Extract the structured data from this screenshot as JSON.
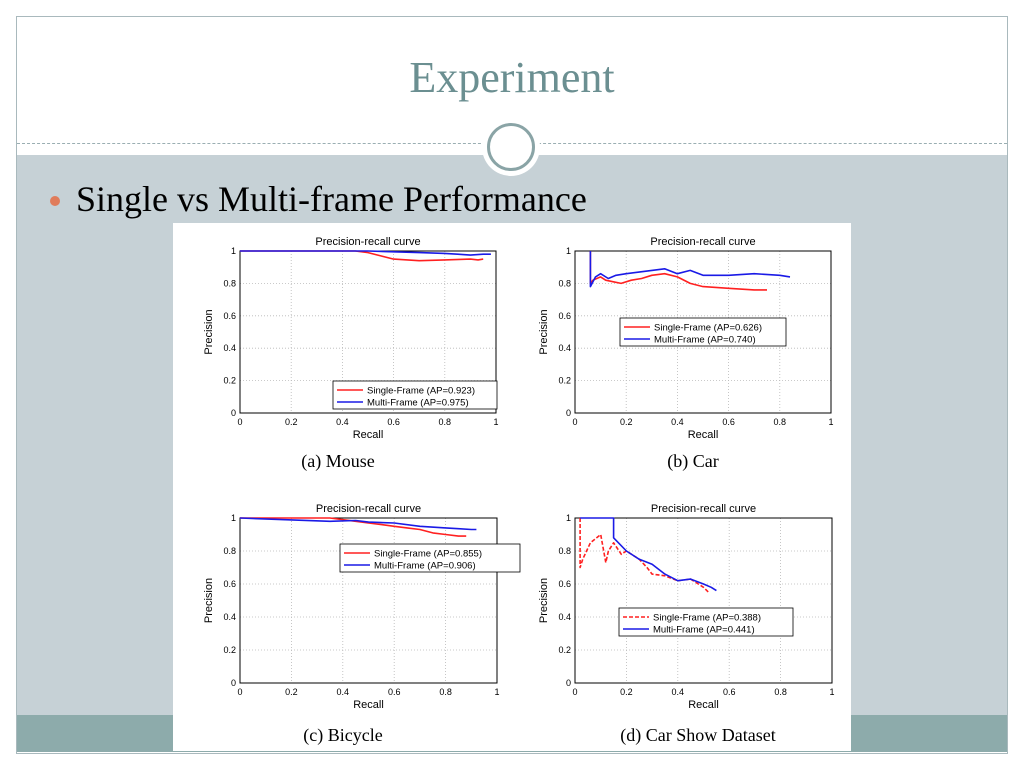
{
  "slide": {
    "title": "Experiment",
    "bullet": "Single vs Multi-frame Performance"
  },
  "captions": [
    "(a) Mouse",
    "(b) Car",
    "(c) Bicycle",
    "(d) Car Show Dataset"
  ],
  "colors": {
    "single": "#ff2020",
    "multi": "#1a1ae6",
    "accent": "#e07c5b",
    "title": "#6b8f91"
  },
  "chart_data": [
    {
      "type": "line",
      "title": "Precision-recall curve",
      "xlabel": "Recall",
      "ylabel": "Precision",
      "xlim": [
        0,
        1
      ],
      "ylim": [
        0,
        1
      ],
      "xticks": [
        "0",
        "0.2",
        "0.4",
        "0.6",
        "0.8",
        "1"
      ],
      "yticks": [
        "0",
        "0.2",
        "0.4",
        "0.6",
        "0.8",
        "1"
      ],
      "grid": true,
      "legend_position": "bottom-right",
      "series": [
        {
          "name": "Single-Frame (AP=0.923)",
          "color": "#ff2020",
          "style": "solid",
          "x": [
            0,
            0.45,
            0.5,
            0.55,
            0.6,
            0.7,
            0.8,
            0.9,
            0.93,
            0.95
          ],
          "y": [
            1,
            1,
            0.99,
            0.97,
            0.95,
            0.94,
            0.945,
            0.95,
            0.945,
            0.95
          ]
        },
        {
          "name": "Multi-Frame (AP=0.975)",
          "color": "#1a1ae6",
          "style": "solid",
          "x": [
            0,
            0.5,
            0.6,
            0.7,
            0.8,
            0.85,
            0.9,
            0.95,
            0.98
          ],
          "y": [
            1,
            1,
            0.995,
            0.99,
            0.985,
            0.98,
            0.975,
            0.98,
            0.98
          ]
        }
      ]
    },
    {
      "type": "line",
      "title": "Precision-recall curve",
      "xlabel": "Recall",
      "ylabel": "Precision",
      "xlim": [
        0,
        1
      ],
      "ylim": [
        0,
        1
      ],
      "xticks": [
        "0",
        "0.2",
        "0.4",
        "0.6",
        "0.8",
        "1"
      ],
      "yticks": [
        "0",
        "0.2",
        "0.4",
        "0.6",
        "0.8",
        "1"
      ],
      "grid": true,
      "legend_position": "center-right",
      "series": [
        {
          "name": "Single-Frame (AP=0.626)",
          "color": "#ff2020",
          "style": "solid",
          "x": [
            0.06,
            0.06,
            0.07,
            0.1,
            0.12,
            0.15,
            0.18,
            0.22,
            0.26,
            0.3,
            0.35,
            0.4,
            0.45,
            0.5,
            0.6,
            0.7,
            0.75
          ],
          "y": [
            1,
            0.8,
            0.82,
            0.84,
            0.82,
            0.81,
            0.8,
            0.82,
            0.83,
            0.85,
            0.86,
            0.84,
            0.8,
            0.78,
            0.77,
            0.76,
            0.76
          ]
        },
        {
          "name": "Multi-Frame (AP=0.740)",
          "color": "#1a1ae6",
          "style": "solid",
          "x": [
            0.06,
            0.06,
            0.08,
            0.1,
            0.13,
            0.16,
            0.2,
            0.25,
            0.3,
            0.35,
            0.4,
            0.45,
            0.5,
            0.6,
            0.7,
            0.8,
            0.84
          ],
          "y": [
            1,
            0.78,
            0.84,
            0.86,
            0.83,
            0.85,
            0.86,
            0.87,
            0.88,
            0.89,
            0.86,
            0.88,
            0.85,
            0.85,
            0.86,
            0.85,
            0.84
          ]
        }
      ]
    },
    {
      "type": "line",
      "title": "Precision-recall curve",
      "xlabel": "Recall",
      "ylabel": "Precision",
      "xlim": [
        0,
        1
      ],
      "ylim": [
        0,
        1
      ],
      "xticks": [
        "0",
        "0.2",
        "0.4",
        "0.6",
        "0.8",
        "1"
      ],
      "yticks": [
        "0",
        "0.2",
        "0.4",
        "0.6",
        "0.8",
        "1"
      ],
      "grid": true,
      "legend_position": "top-right",
      "series": [
        {
          "name": "Single-Frame (AP=0.855)",
          "color": "#ff2020",
          "style": "solid",
          "x": [
            0,
            0.35,
            0.45,
            0.5,
            0.55,
            0.6,
            0.65,
            0.7,
            0.75,
            0.8,
            0.85,
            0.88
          ],
          "y": [
            1,
            1,
            0.98,
            0.97,
            0.96,
            0.95,
            0.94,
            0.93,
            0.91,
            0.9,
            0.89,
            0.89
          ]
        },
        {
          "name": "Multi-Frame (AP=0.906)",
          "color": "#1a1ae6",
          "style": "solid",
          "x": [
            0,
            0.35,
            0.45,
            0.5,
            0.6,
            0.7,
            0.8,
            0.85,
            0.9,
            0.92
          ],
          "y": [
            1,
            0.98,
            0.985,
            0.975,
            0.97,
            0.95,
            0.94,
            0.935,
            0.93,
            0.93
          ]
        }
      ]
    },
    {
      "type": "line",
      "title": "Precision-recall curve",
      "xlabel": "Recall",
      "ylabel": "Precision",
      "xlim": [
        0,
        1
      ],
      "ylim": [
        0,
        1
      ],
      "xticks": [
        "0",
        "0.2",
        "0.4",
        "0.6",
        "0.8",
        "1"
      ],
      "yticks": [
        "0",
        "0.2",
        "0.4",
        "0.6",
        "0.8",
        "1"
      ],
      "grid": true,
      "legend_position": "bottom-right",
      "series": [
        {
          "name": "Single-Frame (AP=0.388)",
          "color": "#ff2020",
          "style": "dashed",
          "x": [
            0.02,
            0.02,
            0.03,
            0.06,
            0.1,
            0.12,
            0.13,
            0.15,
            0.18,
            0.2,
            0.25,
            0.28,
            0.3,
            0.35,
            0.4,
            0.45,
            0.5,
            0.52
          ],
          "y": [
            1,
            0.7,
            0.75,
            0.85,
            0.9,
            0.73,
            0.8,
            0.85,
            0.78,
            0.8,
            0.75,
            0.7,
            0.66,
            0.65,
            0.62,
            0.63,
            0.58,
            0.55
          ]
        },
        {
          "name": "Multi-Frame (AP=0.441)",
          "color": "#1a1ae6",
          "style": "solid",
          "x": [
            0.02,
            0.15,
            0.15,
            0.2,
            0.25,
            0.3,
            0.35,
            0.4,
            0.45,
            0.5,
            0.53,
            0.55
          ],
          "y": [
            1,
            1,
            0.88,
            0.8,
            0.75,
            0.72,
            0.66,
            0.62,
            0.63,
            0.6,
            0.58,
            0.56
          ]
        }
      ]
    }
  ]
}
